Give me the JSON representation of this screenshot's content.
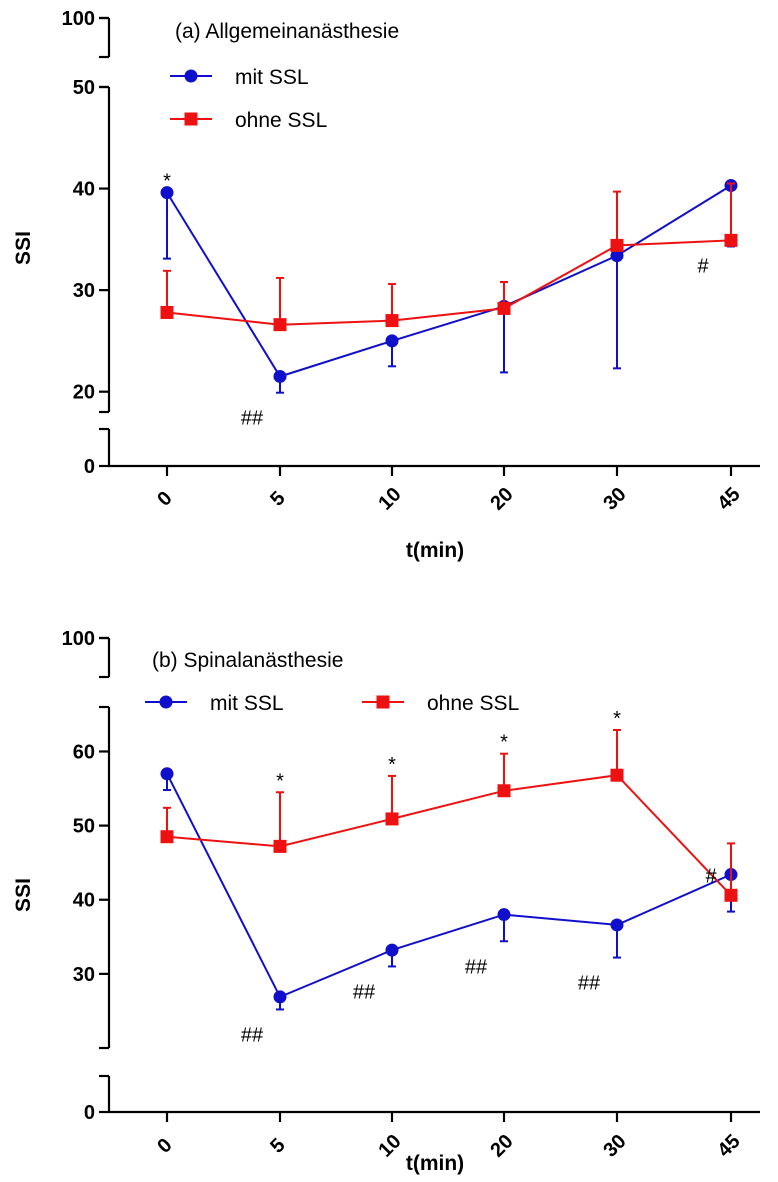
{
  "chart_data": [
    {
      "type": "line",
      "title": "(a) Allgemeinanästhesie",
      "xlabel": "t(min)",
      "ylabel": "SSI",
      "categories": [
        "0",
        "5",
        "10",
        "20",
        "30",
        "45"
      ],
      "y_axis": {
        "broken": true,
        "lower_segment": {
          "range": [
            0,
            7
          ],
          "ticks": [
            "0"
          ]
        },
        "middle_segment": {
          "range": [
            18,
            50
          ],
          "ticks": [
            "20",
            "30",
            "40",
            "50"
          ]
        },
        "upper_segment": {
          "range": [
            95,
            100
          ],
          "ticks": [
            "100"
          ]
        }
      },
      "legend_position": "top-left",
      "series": [
        {
          "name": "mit SSL",
          "color": "#1010cc",
          "marker": "circle",
          "values": [
            39.6,
            21.5,
            25.0,
            28.4,
            33.4,
            40.3
          ],
          "error_high": [
            39.6,
            21.5,
            25.0,
            28.4,
            33.4,
            40.3
          ],
          "error_low": [
            33.1,
            19.9,
            22.5,
            21.9,
            22.3,
            34.3
          ]
        },
        {
          "name": "ohne SSL",
          "color": "#ee1111",
          "marker": "square",
          "values": [
            27.8,
            26.6,
            27.0,
            28.2,
            34.4,
            34.9
          ],
          "error_high": [
            31.9,
            31.2,
            30.6,
            30.8,
            39.7,
            40.5
          ],
          "error_low": [
            27.8,
            26.6,
            27.0,
            28.2,
            34.4,
            34.9
          ]
        }
      ],
      "annotations": [
        {
          "text": "*",
          "category": "0",
          "near": "mit SSL",
          "position": "above"
        },
        {
          "text": "##",
          "category": "5",
          "near": "mit SSL",
          "position": "below-left"
        },
        {
          "text": "#",
          "category": "45",
          "near": "ohne SSL",
          "position": "below-left"
        }
      ]
    },
    {
      "type": "line",
      "title": "(b) Spinalanästhesie",
      "xlabel": "t(min)",
      "ylabel": "SSI",
      "categories": [
        "0",
        "5",
        "10",
        "20",
        "30",
        "45"
      ],
      "y_axis": {
        "broken": true,
        "lower_segment": {
          "range": [
            0,
            7
          ],
          "ticks": [
            "0"
          ]
        },
        "middle_segment": {
          "range": [
            20,
            66
          ],
          "ticks": [
            "30",
            "40",
            "50",
            "60"
          ]
        },
        "upper_segment": {
          "range": [
            95,
            100
          ],
          "ticks": [
            "100"
          ]
        }
      },
      "legend_position": "top",
      "series": [
        {
          "name": "mit SSL",
          "color": "#1010cc",
          "marker": "circle",
          "values": [
            57.0,
            26.9,
            33.2,
            38.0,
            36.6,
            43.4
          ],
          "error_high": [
            57.0,
            26.9,
            33.2,
            38.0,
            36.6,
            43.4
          ],
          "error_low": [
            54.8,
            25.2,
            31.0,
            34.4,
            32.2,
            38.4
          ]
        },
        {
          "name": "ohne SSL",
          "color": "#ee1111",
          "marker": "square",
          "values": [
            48.5,
            47.2,
            50.9,
            54.7,
            56.8,
            40.6
          ],
          "error_high": [
            52.4,
            54.5,
            56.7,
            59.7,
            62.9,
            47.6
          ],
          "error_low": [
            48.5,
            47.2,
            50.9,
            54.7,
            56.8,
            40.6
          ]
        }
      ],
      "annotations": [
        {
          "text": "*",
          "category": "5",
          "near": "ohne SSL",
          "position": "above"
        },
        {
          "text": "*",
          "category": "10",
          "near": "ohne SSL",
          "position": "above"
        },
        {
          "text": "*",
          "category": "20",
          "near": "ohne SSL",
          "position": "above"
        },
        {
          "text": "*",
          "category": "30",
          "near": "ohne SSL",
          "position": "above"
        },
        {
          "text": "##",
          "category": "5",
          "near": "mit SSL",
          "position": "below-left"
        },
        {
          "text": "##",
          "category": "10",
          "near": "mit SSL",
          "position": "below-left"
        },
        {
          "text": "##",
          "category": "20",
          "near": "mit SSL",
          "position": "below-left"
        },
        {
          "text": "##",
          "category": "30",
          "near": "mit SSL",
          "position": "below-left"
        },
        {
          "text": "#",
          "category": "45",
          "near": "mit SSL",
          "position": "left"
        }
      ]
    }
  ]
}
